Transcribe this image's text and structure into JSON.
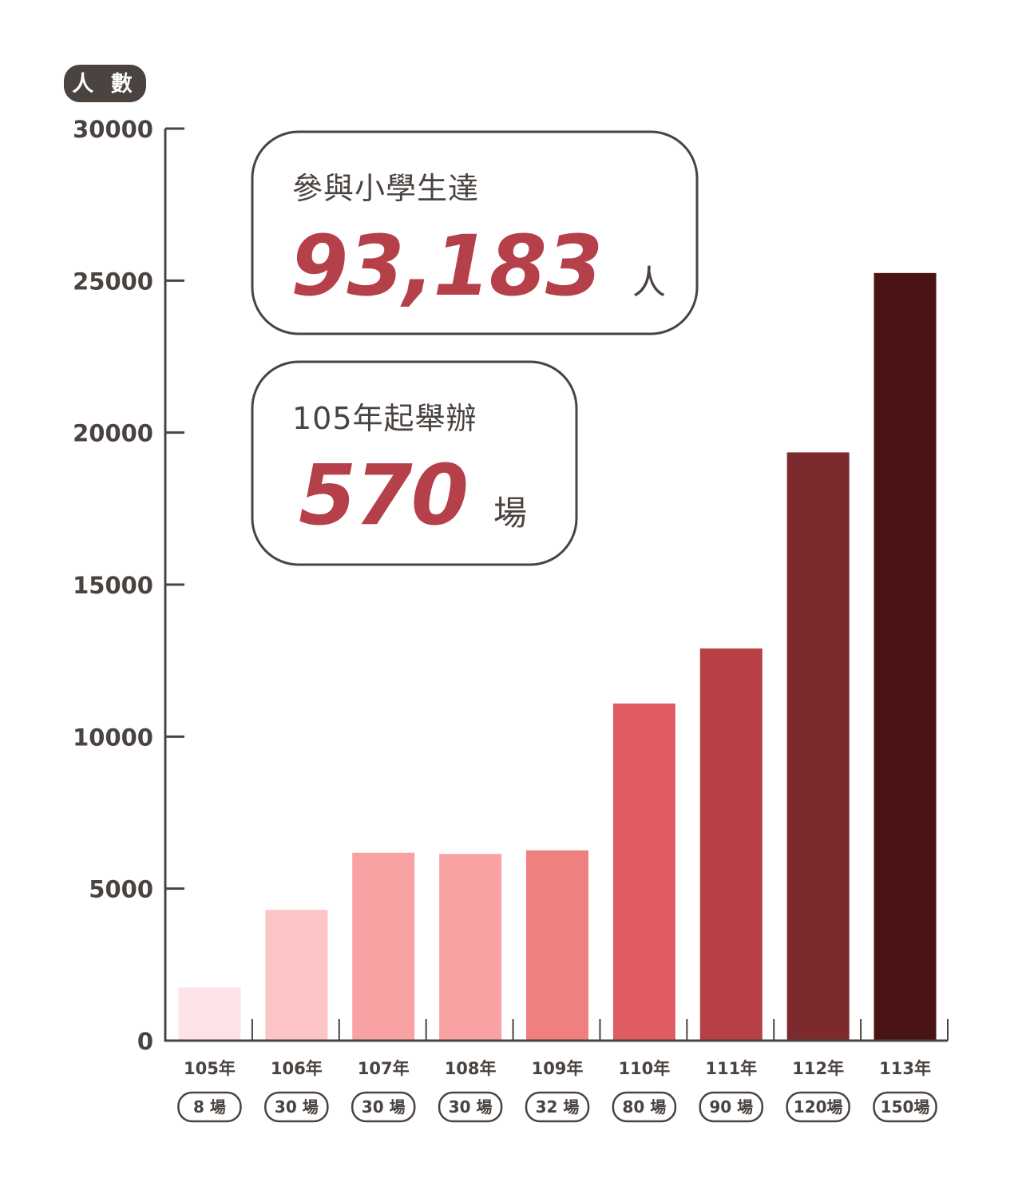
{
  "chart_data": {
    "type": "bar",
    "ylabel": "人 數",
    "ylim": [
      0,
      30000
    ],
    "yticks": [
      0,
      5000,
      10000,
      15000,
      20000,
      25000,
      30000
    ],
    "categories": [
      "105年",
      "106年",
      "107年",
      "108年",
      "109年",
      "110年",
      "111年",
      "112年",
      "113年"
    ],
    "sessions": [
      "8 場",
      "30 場",
      "30 場",
      "30 場",
      "32 場",
      "80 場",
      "90 場",
      "120場",
      "150場"
    ],
    "values": [
      1750,
      4300,
      6180,
      6140,
      6260,
      11090,
      12900,
      19350,
      25250
    ],
    "colors": [
      "#fde3e5",
      "#fcc4c6",
      "#f9a2a4",
      "#f9a2a4",
      "#f08080",
      "#df5d60",
      "#b74045",
      "#7c2a2e",
      "#4b1414"
    ]
  },
  "callouts": {
    "participants": {
      "title": "參與小學生達",
      "value": "93,183",
      "unit": "人"
    },
    "sessions": {
      "title": "105年起舉辦",
      "value": "570",
      "unit": "場"
    }
  },
  "theme": {
    "axis": "#4a4340",
    "accent": "#b5404a"
  }
}
